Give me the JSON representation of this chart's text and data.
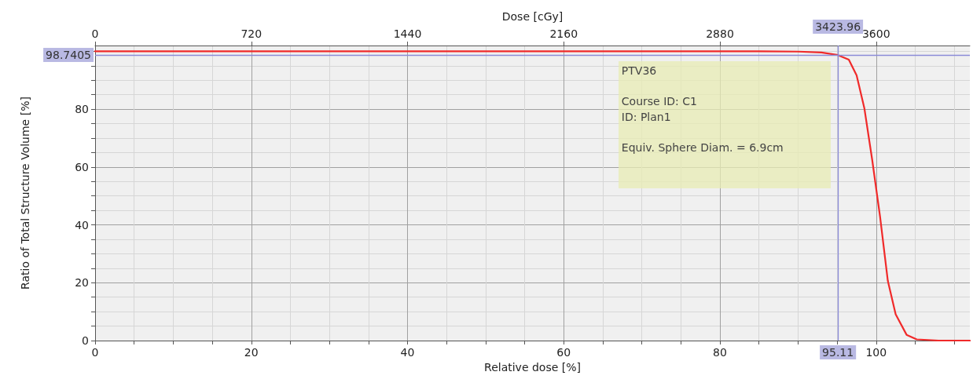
{
  "chart_data": {
    "type": "line",
    "xlabel": "Relative dose [%]",
    "ylabel": "Ratio of Total Structure Volume [%]",
    "x2label": "Dose [cGy]",
    "xlim": [
      0,
      112
    ],
    "xticks": [
      0,
      {
        "value": 5,
        "label": null
      },
      {
        "value": 10,
        "label": null
      },
      {
        "value": 15,
        "label": null
      },
      20,
      {
        "value": 25,
        "label": null
      },
      {
        "value": 30,
        "label": null
      },
      {
        "value": 35,
        "label": null
      },
      40,
      {
        "value": 45,
        "label": null
      },
      {
        "value": 50,
        "label": null
      },
      {
        "value": 55,
        "label": null
      },
      60,
      {
        "value": 65,
        "label": null
      },
      {
        "value": 70,
        "label": null
      },
      {
        "value": 75,
        "label": null
      },
      80,
      {
        "value": 85,
        "label": null
      },
      {
        "value": 90,
        "label": null
      },
      {
        "value": 95,
        "label": null
      },
      100,
      {
        "value": 105,
        "label": null
      },
      {
        "value": 110,
        "label": null
      }
    ],
    "x2lim": [
      0,
      4032
    ],
    "x2ticks": [
      0,
      720,
      1440,
      2160,
      2880,
      3600
    ],
    "ylim": [
      0,
      102
    ],
    "yticks": [
      0,
      {
        "value": 5,
        "label": null
      },
      {
        "value": 10,
        "label": null
      },
      {
        "value": 15,
        "label": null
      },
      20,
      {
        "value": 25,
        "label": null
      },
      {
        "value": 30,
        "label": null
      },
      {
        "value": 35,
        "label": null
      },
      40,
      {
        "value": 45,
        "label": null
      },
      {
        "value": 50,
        "label": null
      },
      {
        "value": 55,
        "label": null
      },
      60,
      {
        "value": 65,
        "label": null
      },
      {
        "value": 70,
        "label": null
      },
      {
        "value": 75,
        "label": null
      },
      80,
      {
        "value": 85,
        "label": null
      },
      {
        "value": 90,
        "label": null
      },
      {
        "value": 95,
        "label": null
      },
      {
        "value": 100,
        "label": null
      }
    ],
    "grid": true,
    "marker": "none",
    "line_style": "solid",
    "series": [
      {
        "color": "#f02a2a",
        "x": [
          0,
          85,
          90,
          93,
          95.11,
          96.5,
          97.5,
          98.5,
          99.5,
          100.5,
          101.5,
          102.5,
          103.9,
          105.2,
          108,
          112
        ],
        "values": [
          100,
          100,
          99.9,
          99.6,
          98.7,
          97.1,
          91.7,
          80.2,
          62.4,
          42.9,
          20.6,
          9.1,
          2,
          0.4,
          0,
          0
        ]
      }
    ],
    "ref_lines": [
      {
        "axis": "y",
        "value": 98.7405,
        "label": "98.7405",
        "color": "#8a8ad8"
      },
      {
        "axis": "x",
        "value": 95.11,
        "label": "95.11",
        "color": "#8a8ad8"
      }
    ],
    "annotations": [
      "PTV36",
      "Course ID: C1",
      "ID: Plan1",
      "Equiv. Sphere Diam. = 6.9cm",
      {
        "text": "3423.96",
        "x": 95.11,
        "y": 98.7405
      }
    ]
  }
}
